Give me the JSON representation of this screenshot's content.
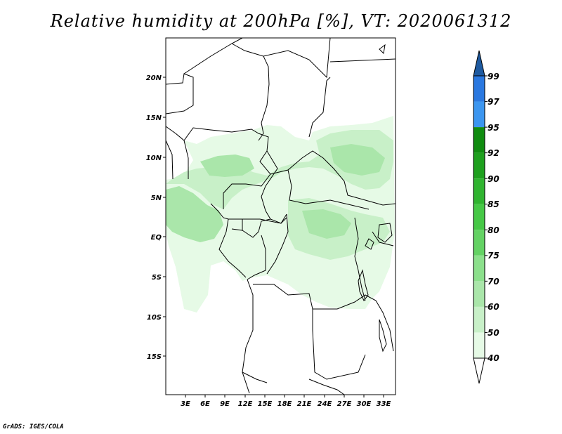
{
  "title": "Relative humidity at 200hPa [%], VT: 2020061312",
  "credit": "GrADS: IGES/COLA",
  "map": {
    "lat_labels": [
      "20N",
      "15N",
      "10N",
      "5N",
      "EQ",
      "5S",
      "10S",
      "15S"
    ],
    "lon_labels": [
      "3E",
      "6E",
      "9E",
      "12E",
      "15E",
      "18E",
      "21E",
      "24E",
      "27E",
      "30E",
      "33E"
    ]
  },
  "colorbar": {
    "levels": [
      "99",
      "97",
      "95",
      "92",
      "90",
      "85",
      "80",
      "75",
      "70",
      "60",
      "50",
      "40"
    ],
    "colors": [
      "#1e50c8",
      "#2a78e0",
      "#3c96f0",
      "#108c10",
      "#1ea01e",
      "#30b430",
      "#46c846",
      "#64d264",
      "#8ce08c",
      "#aae6aa",
      "#c8f0c8",
      "#e6fae6"
    ],
    "top_color": "#1e5aa0"
  }
}
